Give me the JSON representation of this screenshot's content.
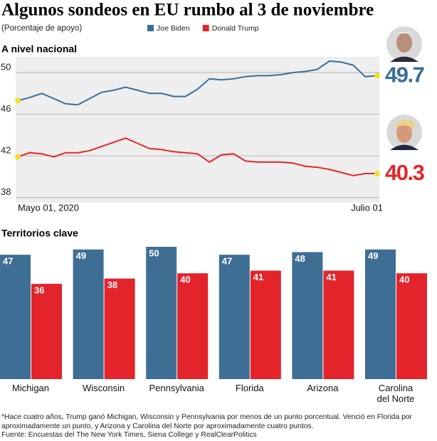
{
  "title": "Algunos sondeos en EU rumbo al 3 de noviembre",
  "subtitle": "(Porcentaje de apoyo)",
  "chart_data": [
    {
      "type": "line",
      "title": "A nivel nacional",
      "categories": [
        "Mayo 01, 2020",
        null,
        null,
        null,
        null,
        null,
        null,
        null,
        null,
        null,
        null,
        null,
        null,
        null,
        null,
        null,
        null,
        null,
        null,
        null,
        null,
        null,
        null,
        null,
        null,
        null,
        null,
        null,
        null,
        null,
        "Julio 01"
      ],
      "series": [
        {
          "name": "Joe Biden",
          "color": "#3b6e98",
          "values": [
            47.3,
            47.6,
            48.0,
            47.5,
            47.0,
            46.9,
            47.5,
            48.1,
            48.3,
            48.6,
            48.3,
            48.0,
            48.0,
            47.7,
            47.7,
            48.4,
            49.4,
            49.3,
            49.4,
            49.6,
            49.7,
            49.7,
            49.8,
            50.0,
            50.1,
            50.3,
            51.1,
            51.0,
            50.7,
            49.6,
            49.7
          ]
        },
        {
          "name": "Donald Trump",
          "color": "#e3262c",
          "values": [
            41.9,
            42.3,
            42.2,
            41.9,
            42.3,
            42.3,
            42.5,
            42.9,
            43.3,
            43.7,
            43.2,
            42.7,
            42.6,
            42.4,
            42.3,
            42.2,
            41.4,
            42.1,
            42.2,
            41.5,
            41.4,
            41.4,
            41.4,
            41.3,
            41.0,
            40.9,
            40.7,
            40.4,
            40.1,
            40.3,
            40.3
          ]
        }
      ],
      "ylim": [
        37.5,
        51.5
      ],
      "yticks": [
        38,
        42,
        46,
        50
      ],
      "grid": true,
      "legend": "top"
    },
    {
      "type": "bar",
      "title": "Territorios clave",
      "categories": [
        "Michigan",
        "Wisconsin",
        "Pennsylvania",
        "Florida",
        "Arizona",
        "Carolina del Norte"
      ],
      "series": [
        {
          "color": "#3e6e94",
          "values": [
            47,
            49,
            50,
            47,
            48,
            49
          ]
        },
        {
          "color": "#e3242b",
          "values": [
            36,
            38,
            40,
            41,
            41,
            40
          ]
        }
      ],
      "ylim": [
        0,
        50
      ]
    }
  ],
  "note": "*Hace cuatro años, Trump ganó Michigan, Wisconsin y Pennsylvania por menos de un punto porcentual. Venció en Florida por aproximadamente un punto, y Arizona y Carolina del Norte por aproximadamente cuatro puntos.",
  "source": "Fuente: Encuestas del The New York Times, Siena College y RealClearPolitics"
}
